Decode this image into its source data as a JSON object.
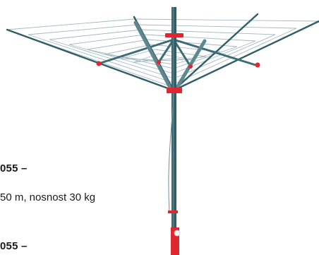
{
  "product": {
    "model_1": "055 –",
    "spec_1": "50 m, nosnost 30 kg",
    "model_2": "055 –"
  },
  "colors": {
    "pole": "#2f5d68",
    "accent": "#e0262e",
    "line": "#9bb4be"
  }
}
